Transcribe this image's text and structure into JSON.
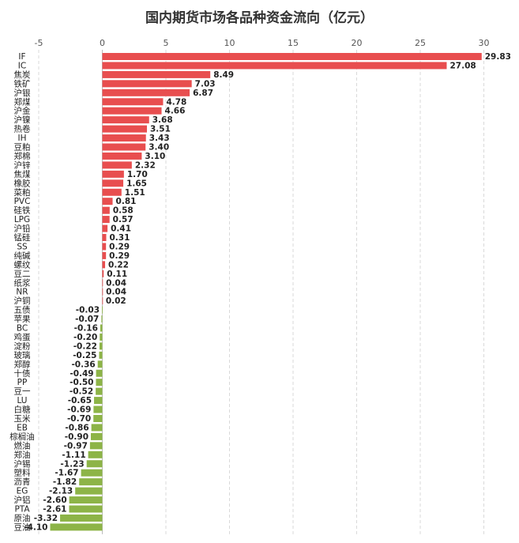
{
  "chart_data": {
    "type": "bar",
    "orientation": "horizontal",
    "title": "国内期货市场各品种资金流向（亿元）",
    "xlim": [
      -5,
      30
    ],
    "xticks": [
      -5,
      0,
      5,
      10,
      15,
      20,
      25,
      30
    ],
    "tick_labels": [
      "-5",
      "0",
      "5",
      "10",
      "15",
      "20",
      "25",
      "30"
    ],
    "grid": "vertical dashed",
    "legend": "none",
    "colors": {
      "positive": "#E84E4F",
      "negative": "#8DB447"
    },
    "categories": [
      "IF",
      "IC",
      "焦炭",
      "铁矿",
      "沪银",
      "郑煤",
      "沪金",
      "沪镍",
      "热卷",
      "IH",
      "豆粕",
      "郑棉",
      "沪锌",
      "焦煤",
      "橡胶",
      "菜粕",
      "PVC",
      "硅铁",
      "LPG",
      "沪铅",
      "锰硅",
      "SS",
      "纯碱",
      "螺纹",
      "豆二",
      "纸浆",
      "NR",
      "沪铜",
      "五债",
      "苹果",
      "BC",
      "鸡蛋",
      "淀粉",
      "玻璃",
      "郑醇",
      "十债",
      "PP",
      "豆一",
      "LU",
      "白糖",
      "玉米",
      "EB",
      "棕榈油",
      "燃油",
      "郑油",
      "沪锡",
      "塑料",
      "沥青",
      "EG",
      "沪铝",
      "PTA",
      "原油",
      "豆油"
    ],
    "values": [
      29.83,
      27.08,
      8.49,
      7.03,
      6.87,
      4.78,
      4.66,
      3.68,
      3.51,
      3.43,
      3.4,
      3.1,
      2.32,
      1.7,
      1.65,
      1.51,
      0.81,
      0.58,
      0.57,
      0.41,
      0.31,
      0.29,
      0.29,
      0.22,
      0.11,
      0.04,
      0.04,
      0.02,
      -0.03,
      -0.07,
      -0.16,
      -0.2,
      -0.22,
      -0.25,
      -0.36,
      -0.49,
      -0.5,
      -0.52,
      -0.65,
      -0.69,
      -0.7,
      -0.86,
      -0.9,
      -0.97,
      -1.11,
      -1.23,
      -1.67,
      -1.82,
      -2.13,
      -2.6,
      -2.61,
      -3.32,
      -4.1
    ],
    "value_labels": [
      "29.83",
      "27.08",
      "8.49",
      "7.03",
      "6.87",
      "4.78",
      "4.66",
      "3.68",
      "3.51",
      "3.43",
      "3.40",
      "3.10",
      "2.32",
      "1.70",
      "1.65",
      "1.51",
      "0.81",
      "0.58",
      "0.57",
      "0.41",
      "0.31",
      "0.29",
      "0.29",
      "0.22",
      "0.11",
      "0.04",
      "0.04",
      "0.02",
      "-0.03",
      "-0.07",
      "-0.16",
      "-0.20",
      "-0.22",
      "-0.25",
      "-0.36",
      "-0.49",
      "-0.50",
      "-0.52",
      "-0.65",
      "-0.69",
      "-0.70",
      "-0.86",
      "-0.90",
      "-0.97",
      "-1.11",
      "-1.23",
      "-1.67",
      "-1.82",
      "-2.13",
      "-2.60",
      "-2.61",
      "-3.32",
      "-4.10"
    ]
  }
}
